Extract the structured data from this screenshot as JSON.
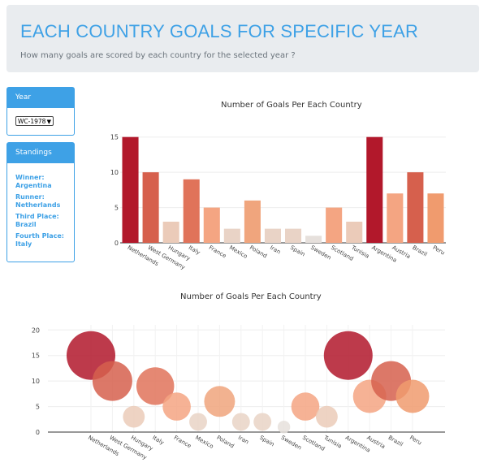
{
  "header": {
    "title": "EACH COUNTRY GOALS FOR SPECIFIC YEAR",
    "subtitle": "How many goals are scored by each country for the selected year ?"
  },
  "year_card": {
    "title": "Year",
    "selected": "WC-1978"
  },
  "standings": {
    "title": "Standings",
    "winner_label": "Winner:",
    "winner": "Argentina",
    "runner_label": "Runner:",
    "runner": "Netherlands",
    "third_label": "Third Place:",
    "third": "Brazil",
    "fourth_label": "Fourth Place:",
    "fourth": "Italy"
  },
  "chart_data": [
    {
      "type": "bar",
      "title": "Number of Goals Per Each Country",
      "categories": [
        "Netherlands",
        "West Germany",
        "Hungary",
        "Italy",
        "France",
        "Mexico",
        "Poland",
        "Iran",
        "Spain",
        "Sweden",
        "Scotland",
        "Tunisia",
        "Argentina",
        "Austria",
        "Brazil",
        "Peru"
      ],
      "values": [
        15,
        10,
        3,
        9,
        5,
        2,
        6,
        2,
        2,
        1,
        5,
        3,
        15,
        7,
        10,
        7
      ],
      "ylim": [
        0,
        16
      ],
      "yticks": [
        0,
        5,
        10,
        15
      ],
      "colors": [
        "#b2182b",
        "#d6604d",
        "#ebcbb9",
        "#e0735a",
        "#f4a582",
        "#e9d3c6",
        "#f0a57d",
        "#e9d3c6",
        "#e9d3c6",
        "#e6e0dc",
        "#f4a582",
        "#ebcbb9",
        "#b2182b",
        "#f4a582",
        "#d6604d",
        "#f09b6e"
      ]
    },
    {
      "type": "scatter",
      "title": "Number of Goals Per Each Country",
      "categories": [
        "Netherlands",
        "West Germany",
        "Hungary",
        "Italy",
        "France",
        "Mexico",
        "Poland",
        "Iran",
        "Spain",
        "Sweden",
        "Scotland",
        "Tunisia",
        "Argentina",
        "Austria",
        "Brazil",
        "Peru"
      ],
      "values": [
        15,
        10,
        3,
        9,
        5,
        2,
        6,
        2,
        2,
        1,
        5,
        3,
        15,
        7,
        10,
        7
      ],
      "ylim": [
        0,
        21
      ],
      "yticks": [
        0,
        5,
        10,
        15,
        20
      ],
      "colors": [
        "#b2182b",
        "#d6604d",
        "#ebcbb9",
        "#e0735a",
        "#f4a582",
        "#e9d3c6",
        "#f0a57d",
        "#e9d3c6",
        "#e9d3c6",
        "#e6e0dc",
        "#f4a582",
        "#ebcbb9",
        "#b2182b",
        "#f4a582",
        "#d6604d",
        "#f09b6e"
      ]
    }
  ]
}
